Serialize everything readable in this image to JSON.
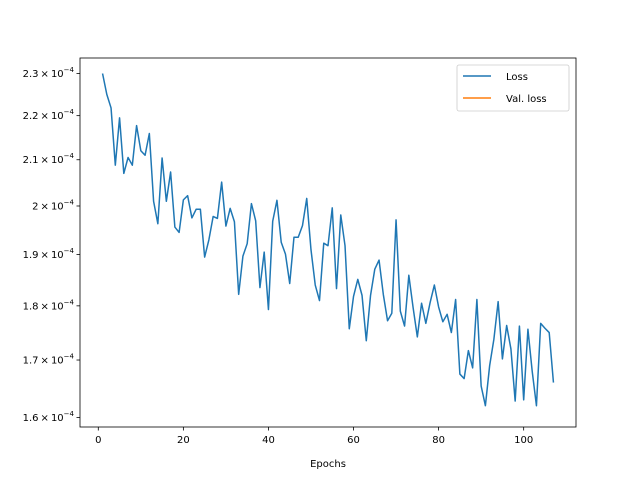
{
  "chart_data": {
    "type": "line",
    "title": "",
    "xlabel": "Epochs",
    "ylabel": "",
    "yscale": "log",
    "xlim": [
      -4.3,
      112.3
    ],
    "ylim": [
      0.0001584,
      0.0002338
    ],
    "grid": false,
    "legend_position": "top-right",
    "x_ticks": [
      0,
      20,
      40,
      60,
      80,
      100
    ],
    "x_tick_labels": [
      "0",
      "20",
      "40",
      "60",
      "80",
      "100"
    ],
    "y_ticks": [
      0.00016,
      0.00017,
      0.00018,
      0.00019,
      0.0002,
      0.00021,
      0.00022,
      0.00023
    ],
    "y_tick_mantissas": [
      "1.6",
      "1.7",
      "1.8",
      "1.9",
      "2",
      "2.1",
      "2.2",
      "2.3"
    ],
    "y_tick_times": "×",
    "y_tick_base": "10",
    "y_tick_exponent": "−4",
    "series": [
      {
        "name": "Loss",
        "color": "#1f77b4",
        "x": [
          1,
          2,
          3,
          4,
          5,
          6,
          7,
          8,
          9,
          10,
          11,
          12,
          13,
          14,
          15,
          16,
          17,
          18,
          19,
          20,
          21,
          22,
          23,
          24,
          25,
          26,
          27,
          28,
          29,
          30,
          31,
          32,
          33,
          34,
          35,
          36,
          37,
          38,
          39,
          40,
          41,
          42,
          43,
          44,
          45,
          46,
          47,
          48,
          49,
          50,
          51,
          52,
          53,
          54,
          55,
          56,
          57,
          58,
          59,
          60,
          61,
          62,
          63,
          64,
          65,
          66,
          67,
          68,
          69,
          70,
          71,
          72,
          73,
          74,
          75,
          76,
          77,
          78,
          79,
          80,
          81,
          82,
          83,
          84,
          85,
          86,
          87,
          88,
          89,
          90,
          91,
          92,
          93,
          94,
          95,
          96,
          97,
          98,
          99,
          100,
          101,
          102,
          103,
          104,
          105,
          106,
          107
        ],
        "values": [
          0.00023,
          0.000225,
          0.0002218,
          0.0002088,
          0.0002195,
          0.000207,
          0.0002105,
          0.0002088,
          0.0002177,
          0.000212,
          0.000211,
          0.0002159,
          0.000201,
          0.0001963,
          0.0002104,
          0.000201,
          0.0002073,
          0.0001956,
          0.0001945,
          0.0002013,
          0.0002022,
          0.0001975,
          0.0001993,
          0.0001993,
          0.0001895,
          0.000193,
          0.0001978,
          0.0001974,
          0.0002051,
          0.0001958,
          0.0001995,
          0.0001967,
          0.0001822,
          0.0001897,
          0.0001922,
          0.0002005,
          0.0001969,
          0.0001835,
          0.0001905,
          0.0001793,
          0.0001968,
          0.0002012,
          0.0001925,
          0.0001901,
          0.0001843,
          0.0001935,
          0.0001935,
          0.0001959,
          0.0002016,
          0.000191,
          0.000184,
          0.000181,
          0.0001923,
          0.0001918,
          0.0001996,
          0.0001833,
          0.0001981,
          0.0001918,
          0.0001757,
          0.0001818,
          0.0001851,
          0.000182,
          0.0001735,
          0.000182,
          0.0001871,
          0.0001889,
          0.0001822,
          0.0001772,
          0.0001786,
          0.0001971,
          0.000179,
          0.0001762,
          0.0001859,
          0.0001797,
          0.0001742,
          0.0001805,
          0.0001767,
          0.0001806,
          0.000184,
          0.0001798,
          0.000177,
          0.0001784,
          0.000175,
          0.0001812,
          0.0001675,
          0.0001667,
          0.0001717,
          0.0001686,
          0.0001812,
          0.0001654,
          0.000162,
          0.000169,
          0.0001738,
          0.0001808,
          0.0001702,
          0.0001763,
          0.000172,
          0.0001628,
          0.0001762,
          0.000163,
          0.0001756,
          0.000168,
          0.000162,
          0.0001767,
          0.0001758,
          0.000175,
          0.000166
        ]
      },
      {
        "name": "Val. loss",
        "color": "#ff7f0e",
        "x": [],
        "values": []
      }
    ]
  }
}
